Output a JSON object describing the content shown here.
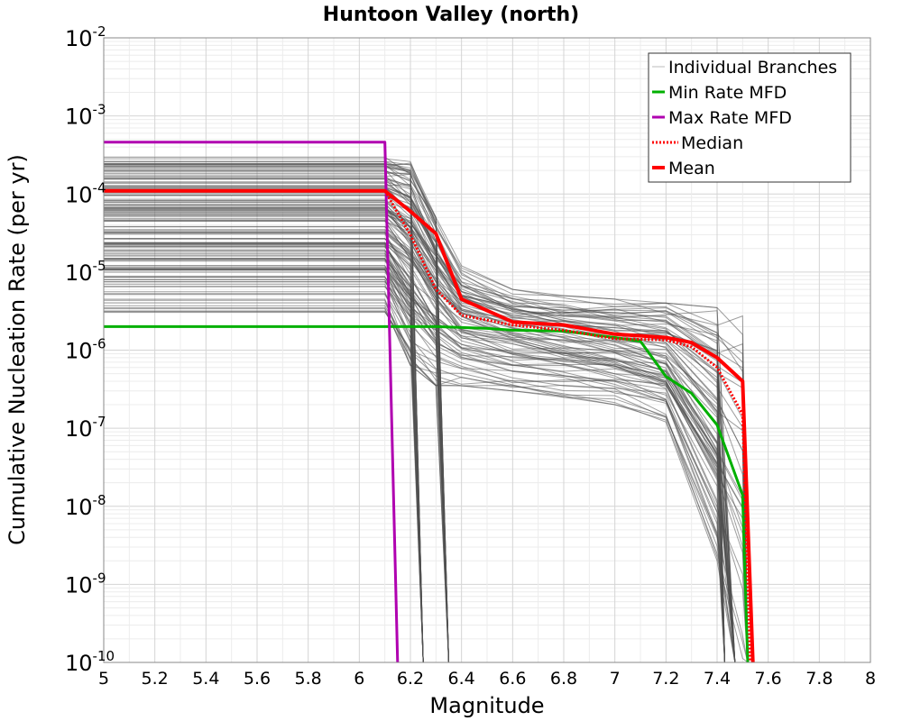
{
  "chart_data": {
    "type": "line",
    "title": "Huntoon Valley (north)",
    "xlabel": "Magnitude",
    "ylabel": "Cumulative Nucleation Rate (per yr)",
    "xlim": [
      5,
      8
    ],
    "ylim": [
      1e-10,
      0.01
    ],
    "yscale": "log",
    "grid": true,
    "legend_position": "top-right",
    "x_ticks": [
      "5",
      "5.2",
      "5.4",
      "5.6",
      "5.8",
      "6",
      "6.2",
      "6.4",
      "6.6",
      "6.8",
      "7",
      "7.2",
      "7.4",
      "7.6",
      "7.8",
      "8"
    ],
    "y_ticks": [
      {
        "base": "10",
        "exp": "-2"
      },
      {
        "base": "10",
        "exp": "-3"
      },
      {
        "base": "10",
        "exp": "-4"
      },
      {
        "base": "10",
        "exp": "-5"
      },
      {
        "base": "10",
        "exp": "-6"
      },
      {
        "base": "10",
        "exp": "-7"
      },
      {
        "base": "10",
        "exp": "-8"
      },
      {
        "base": "10",
        "exp": "-9"
      },
      {
        "base": "10",
        "exp": "-10"
      }
    ],
    "colors": {
      "branches": "#505050",
      "min_rate": "#00b000",
      "max_rate": "#b000b0",
      "median": "#ff0000",
      "mean": "#ff0000"
    },
    "legend": [
      {
        "label": "Individual Branches",
        "style": "thin-gray"
      },
      {
        "label": "Min Rate MFD",
        "style": "green"
      },
      {
        "label": "Max Rate MFD",
        "style": "magenta"
      },
      {
        "label": "Median",
        "style": "red-dotted"
      },
      {
        "label": "Mean",
        "style": "red-thick"
      }
    ],
    "series": [
      {
        "name": "Min Rate MFD",
        "x": [
          5.0,
          6.3,
          6.5,
          6.6,
          6.8,
          7.0,
          7.1,
          7.2,
          7.3,
          7.4,
          7.5,
          7.52
        ],
        "y": [
          2e-06,
          2e-06,
          1.9e-06,
          1.8e-06,
          1.75e-06,
          1.45e-06,
          1.3e-06,
          4.6e-07,
          2.8e-07,
          1.1e-07,
          1.4e-08,
          1e-10
        ]
      },
      {
        "name": "Max Rate MFD",
        "x": [
          5.0,
          6.1,
          6.15
        ],
        "y": [
          0.00046,
          0.00046,
          1e-10
        ]
      },
      {
        "name": "Median",
        "x": [
          5.0,
          6.1,
          6.2,
          6.3,
          6.4,
          6.6,
          6.8,
          7.0,
          7.2,
          7.3,
          7.4,
          7.5,
          7.53
        ],
        "y": [
          0.00011,
          0.00011,
          3e-05,
          6e-06,
          2.8e-06,
          2.1e-06,
          1.8e-06,
          1.4e-06,
          1.35e-06,
          1.1e-06,
          6e-07,
          1.5e-07,
          1e-10
        ]
      },
      {
        "name": "Mean",
        "x": [
          5.0,
          6.1,
          6.2,
          6.3,
          6.4,
          6.6,
          6.8,
          7.0,
          7.2,
          7.3,
          7.4,
          7.5,
          7.54
        ],
        "y": [
          0.00011,
          0.00011,
          6e-05,
          3.1e-05,
          4.5e-06,
          2.3e-06,
          2.1e-06,
          1.6e-06,
          1.45e-06,
          1.25e-06,
          8e-07,
          4e-07,
          1e-10
        ]
      }
    ],
    "branch_bundles": [
      {
        "name": "Individual Branches",
        "x": [
          5.0,
          6.1,
          6.2,
          6.3,
          6.4,
          6.6,
          6.8,
          7.0,
          7.2,
          7.4,
          7.5
        ],
        "y_upper": [
          0.00032,
          0.00032,
          0.00026,
          5e-05,
          1.2e-05,
          6e-06,
          5e-06,
          4.5e-06,
          4e-06,
          3.5e-06,
          3.2e-06
        ],
        "y_lower": [
          3e-06,
          3e-06,
          6e-07,
          3.5e-07,
          3.5e-07,
          3e-07,
          2.5e-07,
          2e-07,
          1.2e-07,
          2e-09,
          1e-10
        ],
        "drop_magnitudes": [
          6.25,
          6.35,
          7.43,
          7.47,
          7.52
        ]
      }
    ]
  }
}
